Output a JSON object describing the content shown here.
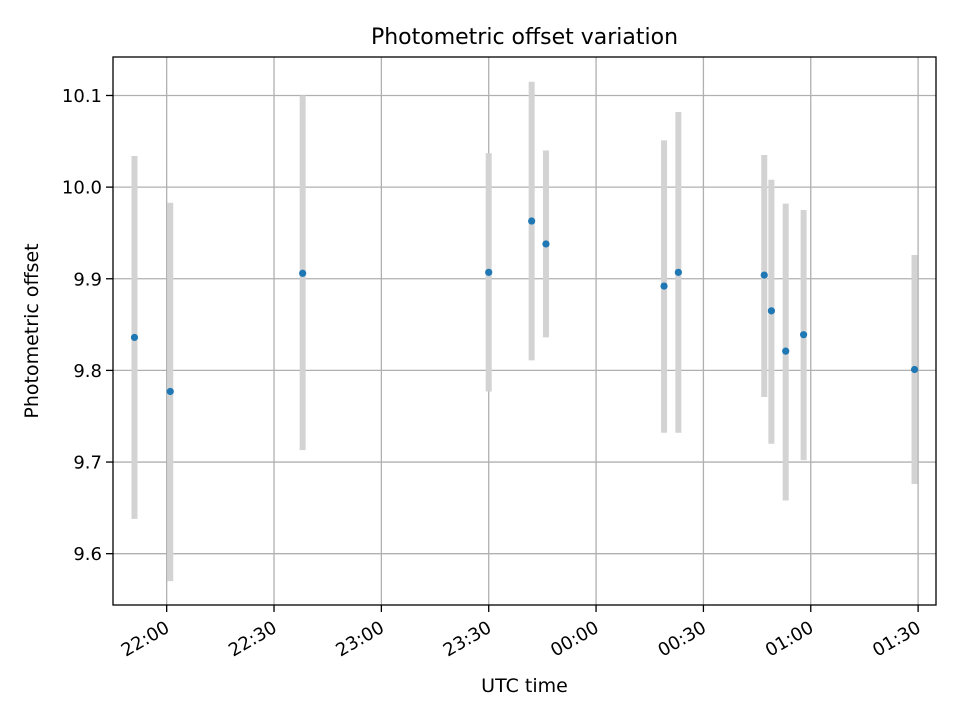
{
  "chart_data": {
    "type": "scatter",
    "title": "Photometric offset variation",
    "xlabel": "UTC time",
    "ylabel": "Photometric offset",
    "x_tick_labels": [
      "22:00",
      "22:30",
      "23:00",
      "23:30",
      "00:00",
      "00:30",
      "01:00",
      "01:30"
    ],
    "y_tick_labels": [
      "9.6",
      "9.7",
      "9.8",
      "9.9",
      "10.0",
      "10.1"
    ],
    "y_ticks": [
      9.6,
      9.7,
      9.8,
      9.9,
      10.0,
      10.1
    ],
    "xlim": [
      "21:45",
      "01:35"
    ],
    "ylim": [
      9.544,
      10.142
    ],
    "grid": true,
    "point_color": "#1f77b4",
    "errorbar_color": "#d3d3d3",
    "points": [
      {
        "x": "21:51",
        "y": 9.836,
        "err_low": 9.638,
        "err_high": 10.034
      },
      {
        "x": "22:01",
        "y": 9.777,
        "err_low": 9.57,
        "err_high": 9.983
      },
      {
        "x": "22:38",
        "y": 9.906,
        "err_low": 9.713,
        "err_high": 10.1
      },
      {
        "x": "23:30",
        "y": 9.907,
        "err_low": 9.777,
        "err_high": 10.037
      },
      {
        "x": "23:42",
        "y": 9.963,
        "err_low": 9.811,
        "err_high": 10.115
      },
      {
        "x": "23:46",
        "y": 9.938,
        "err_low": 9.836,
        "err_high": 10.04
      },
      {
        "x": "00:19",
        "y": 9.892,
        "err_low": 9.732,
        "err_high": 10.051
      },
      {
        "x": "00:23",
        "y": 9.907,
        "err_low": 9.732,
        "err_high": 10.082
      },
      {
        "x": "00:47",
        "y": 9.904,
        "err_low": 9.771,
        "err_high": 10.035
      },
      {
        "x": "00:49",
        "y": 9.865,
        "err_low": 9.72,
        "err_high": 10.008
      },
      {
        "x": "00:53",
        "y": 9.821,
        "err_low": 9.658,
        "err_high": 9.982
      },
      {
        "x": "00:58",
        "y": 9.839,
        "err_low": 9.702,
        "err_high": 9.975
      },
      {
        "x": "01:29",
        "y": 9.801,
        "err_low": 9.676,
        "err_high": 9.926
      }
    ]
  }
}
